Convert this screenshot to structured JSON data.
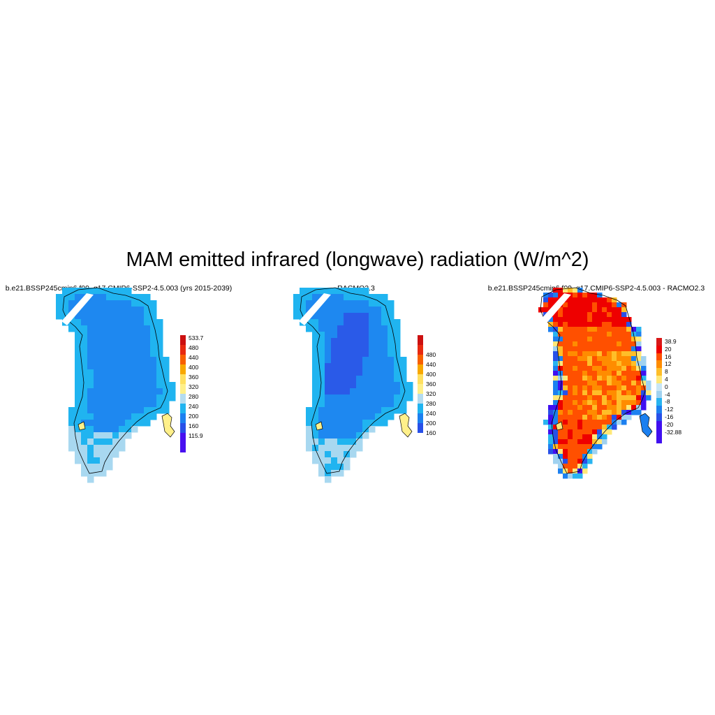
{
  "title": "MAM emitted infrared (longwave) radiation (W/m^2)",
  "panels": [
    {
      "title": "b.e21.BSSP245cmip6.f09_g17.CMIP6-SSP2-4.5.003 (yrs 2015-2039)",
      "scheme": "model",
      "colorbar": {
        "labels": [
          "533.7",
          "480",
          "440",
          "400",
          "360",
          "320",
          "280",
          "240",
          "200",
          "160",
          "115.9"
        ],
        "colors": [
          "#e8140e",
          "#f8a800",
          "#fff08a",
          "#b4dcf0",
          "#20b4f0",
          "#1c80f0",
          "#2850e8",
          "#4810f0",
          "#bb0a0a",
          "#ff5a00",
          "#ffd230"
        ]
      }
    },
    {
      "title": "RACMO2.3",
      "scheme": "obs",
      "colorbar": {
        "labels": [
          "480",
          "440",
          "400",
          "360",
          "320",
          "280",
          "240",
          "200",
          "160"
        ],
        "colors": [
          "#e8140e",
          "#f8a800",
          "#fff08a",
          "#b4dcf0",
          "#20b4f0",
          "#1c80f0",
          "#2850e8",
          "#4810f0",
          "#bb0a0a",
          "#ff5a00",
          "#ffd230"
        ]
      }
    },
    {
      "title": "b.e21.BSSP245cmip6.f09_g17.CMIP6-SSP2-4.5.003 - RACMO2.3",
      "scheme": "diff",
      "colorbar": {
        "labels": [
          "38.9",
          "20",
          "16",
          "12",
          "8",
          "4",
          "0",
          "-4",
          "-8",
          "-12",
          "-16",
          "-20",
          "-32.88"
        ],
        "colors": [
          "#d81818",
          "#ee0000",
          "#ff5000",
          "#ff8c00",
          "#ffbe28",
          "#ffe878",
          "#c8e6f5",
          "#a0d2f0",
          "#28b4f0",
          "#1c80f0",
          "#2850e8",
          "#4010f0"
        ]
      }
    }
  ]
}
